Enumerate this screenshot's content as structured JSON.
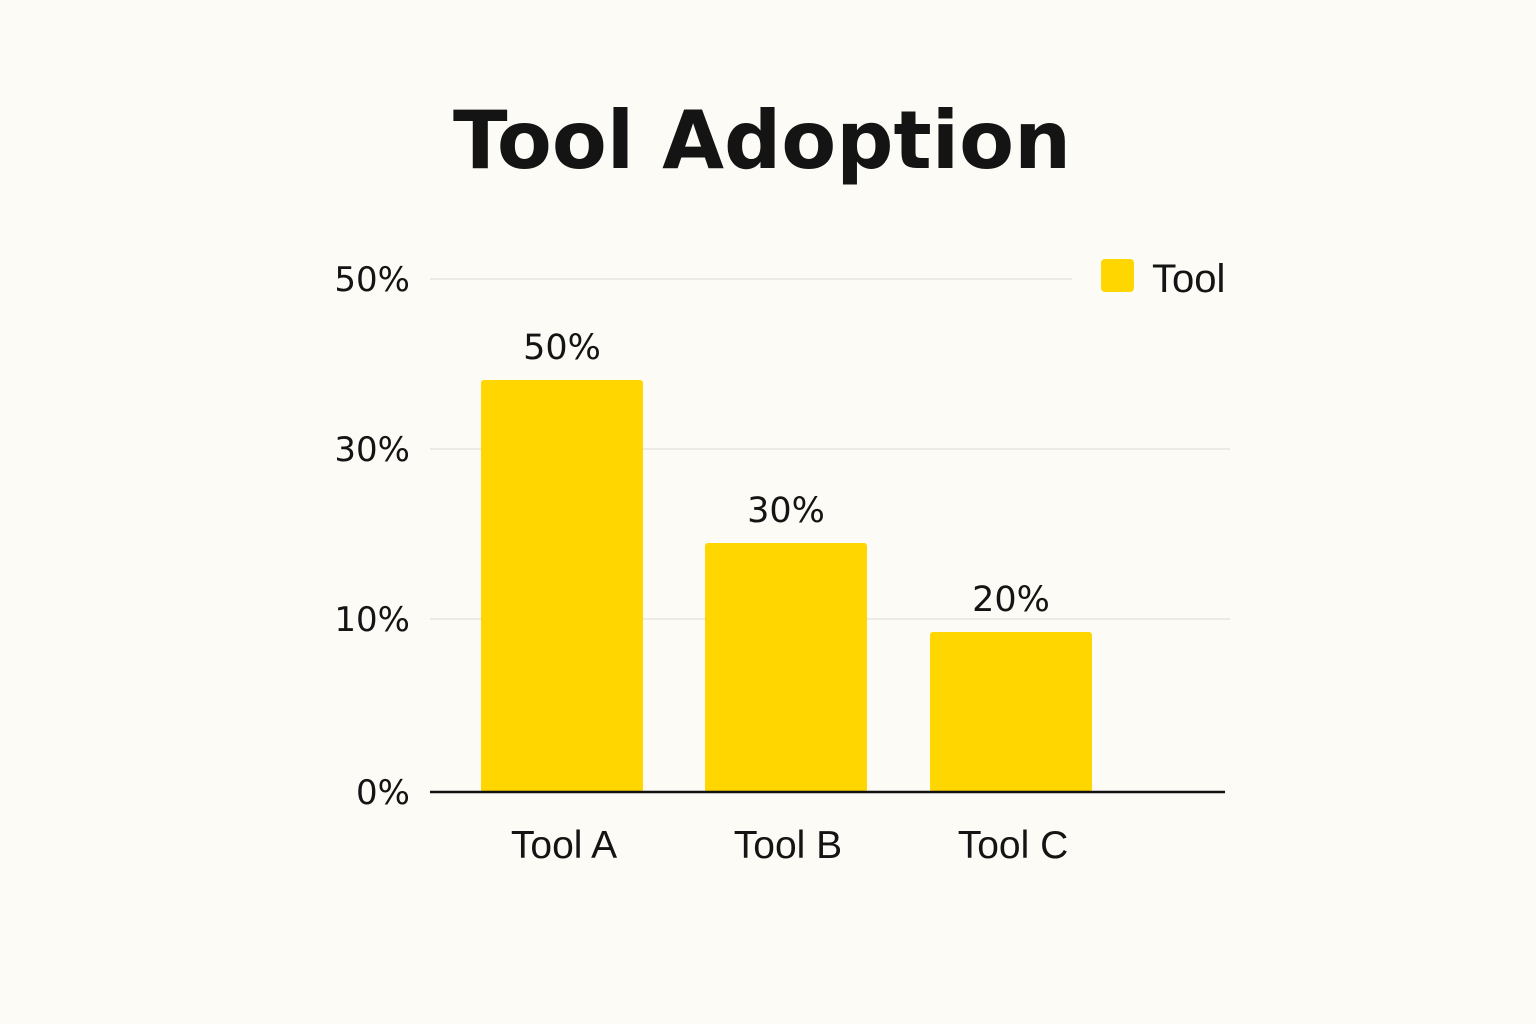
{
  "chart_data": {
    "type": "bar",
    "title": "Tool Adoption",
    "categories": [
      "Tool A",
      "Tool B",
      "Tool C"
    ],
    "series": [
      {
        "name": "Tool",
        "values": [
          50,
          30,
          20
        ],
        "data_labels": [
          "50%",
          "30%",
          "20%"
        ]
      }
    ],
    "yticks": [
      {
        "value": 0,
        "label": "0%"
      },
      {
        "value": 10,
        "label": "10%"
      },
      {
        "value": 30,
        "label": "30%"
      },
      {
        "value": 50,
        "label": "50%"
      }
    ],
    "xlabel": "",
    "ylabel": "",
    "grid": true,
    "legend_position": "top-right",
    "colors": {
      "bar": "#ffd600",
      "axis": "#111111",
      "grid": "#e6e5df",
      "background": "#fcfbf6"
    }
  }
}
